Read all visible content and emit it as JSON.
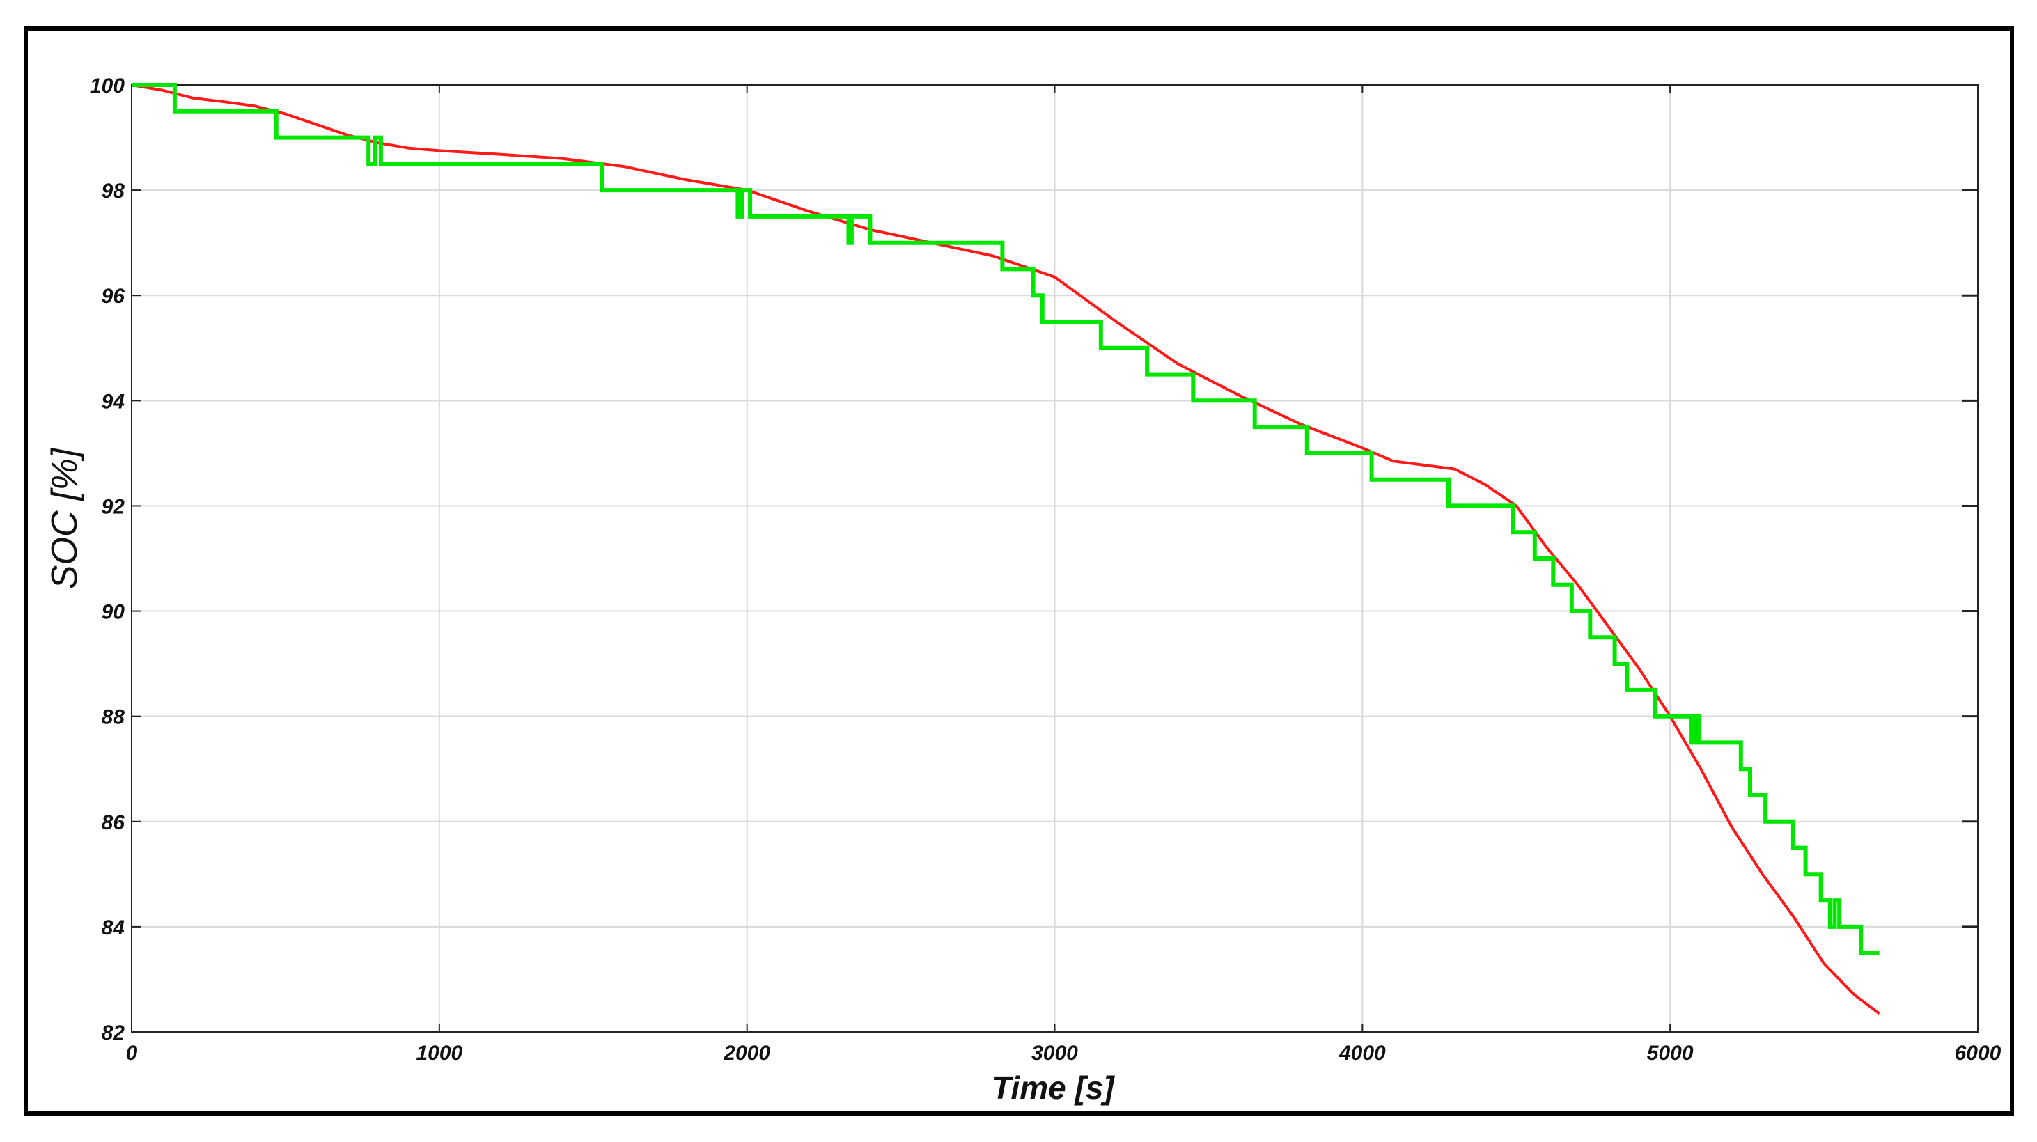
{
  "colors": {
    "soc_reference": "#ff1a1a",
    "soc_estimate": "#00e600",
    "grid": "#d9d9d9",
    "axis": "#222222",
    "frame": "#000000"
  },
  "chart_data": {
    "type": "line",
    "xlabel": "Time [s]",
    "ylabel": "SOC [%]",
    "xlim": [
      0,
      6000
    ],
    "ylim": [
      82,
      100
    ],
    "xticks": [
      "0",
      "1000",
      "2000",
      "3000",
      "4000",
      "5000",
      "6000"
    ],
    "yticks": [
      "82",
      "84",
      "86",
      "88",
      "90",
      "92",
      "94",
      "96",
      "98",
      "100"
    ],
    "grid": true,
    "series": [
      {
        "color": "red",
        "x": [
          0,
          100,
          200,
          300,
          400,
          500,
          600,
          700,
          800,
          900,
          1000,
          1200,
          1400,
          1600,
          1800,
          2000,
          2200,
          2400,
          2600,
          2800,
          3000,
          3200,
          3400,
          3600,
          3800,
          4000,
          4100,
          4300,
          4400,
          4500,
          4600,
          4700,
          4800,
          4900,
          5000,
          5100,
          5200,
          5300,
          5400,
          5500,
          5600,
          5680
        ],
        "y": [
          100,
          99.9,
          99.75,
          99.68,
          99.6,
          99.45,
          99.25,
          99.05,
          98.9,
          98.8,
          98.75,
          98.68,
          98.6,
          98.45,
          98.2,
          98.0,
          97.6,
          97.25,
          97.0,
          96.75,
          96.35,
          95.5,
          94.7,
          94.1,
          93.55,
          93.1,
          92.85,
          92.7,
          92.4,
          92.0,
          91.2,
          90.5,
          89.7,
          88.9,
          88.0,
          87.0,
          85.9,
          85.0,
          84.2,
          83.3,
          82.7,
          82.35
        ]
      },
      {
        "color": "green",
        "x": [
          0,
          140,
          140,
          470,
          470,
          770,
          770,
          790,
          790,
          810,
          810,
          840,
          840,
          1530,
          1530,
          1970,
          1970,
          1985,
          1985,
          2010,
          2010,
          2330,
          2330,
          2340,
          2340,
          2400,
          2400,
          2830,
          2830,
          2930,
          2930,
          2960,
          2960,
          3150,
          3150,
          3300,
          3300,
          3450,
          3450,
          3650,
          3650,
          3820,
          3820,
          4030,
          4030,
          4280,
          4280,
          4490,
          4490,
          4510,
          4510,
          4560,
          4560,
          4620,
          4620,
          4680,
          4680,
          4740,
          4740,
          4820,
          4820,
          4860,
          4860,
          4950,
          4950,
          5070,
          5070,
          5085,
          5085,
          5095,
          5095,
          5110,
          5110,
          5230,
          5230,
          5260,
          5260,
          5310,
          5310,
          5400,
          5400,
          5440,
          5440,
          5490,
          5490,
          5520,
          5520,
          5535,
          5535,
          5550,
          5550,
          5620,
          5620,
          5680
        ],
        "y": [
          100,
          100,
          99.5,
          99.5,
          99.0,
          99.0,
          98.5,
          98.5,
          99.0,
          99.0,
          98.5,
          98.5,
          98.5,
          98.5,
          98.0,
          98.0,
          97.5,
          97.5,
          98.0,
          98.0,
          97.5,
          97.5,
          97.0,
          97.0,
          97.5,
          97.5,
          97.0,
          97.0,
          96.5,
          96.5,
          96.0,
          96.0,
          95.5,
          95.5,
          95.0,
          95.0,
          94.5,
          94.5,
          94.0,
          94.0,
          93.5,
          93.5,
          93.0,
          93.0,
          92.5,
          92.5,
          92.0,
          92.0,
          91.5,
          91.5,
          91.5,
          91.5,
          91.0,
          91.0,
          90.5,
          90.5,
          90.0,
          90.0,
          89.5,
          89.5,
          89.0,
          89.0,
          88.5,
          88.5,
          88.0,
          88.0,
          87.5,
          87.5,
          88.0,
          88.0,
          87.5,
          87.5,
          87.5,
          87.5,
          87.0,
          87.0,
          86.5,
          86.5,
          86.0,
          86.0,
          85.5,
          85.5,
          85.0,
          85.0,
          84.5,
          84.5,
          84.0,
          84.0,
          84.5,
          84.5,
          84.0,
          84.0,
          83.5,
          83.5
        ]
      }
    ]
  }
}
